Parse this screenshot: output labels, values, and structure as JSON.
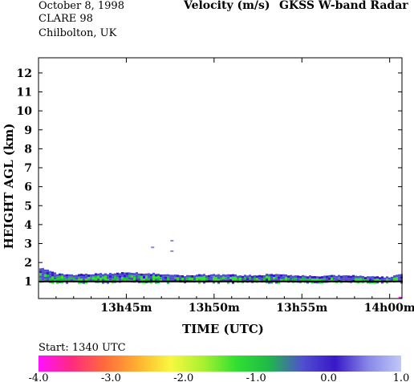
{
  "header": {
    "date": "October   8, 1998",
    "campaign": "CLARE 98",
    "location": "Chilbolton, UK",
    "quantity": "Velocity (m/s)",
    "instrument": "GKSS  W-band Radar"
  },
  "start_label": "Start: 1340 UTC",
  "colors": {
    "background": "#ffffff",
    "palette": [
      "#ff10ff",
      "#ff2a80",
      "#ff6a3c",
      "#ffb030",
      "#f8f840",
      "#a8f030",
      "#30e030",
      "#20b848",
      "#5050d0",
      "#3818c8",
      "#8888e8",
      "#c0c8f8"
    ]
  },
  "chart_data": {
    "type": "heatmap",
    "title": "Velocity (m/s)",
    "xlabel": "TIME (UTC)",
    "ylabel": "HEIGHT AGL (km)",
    "x_ticks": [
      "13h45m",
      "13h50m",
      "13h55m",
      "14h00m"
    ],
    "x_tick_minutes": [
      5,
      10,
      15,
      20
    ],
    "x_range_minutes": [
      0,
      20.7
    ],
    "y_ticks": [
      "1",
      "2",
      "3",
      "4",
      "5",
      "6",
      "7",
      "8",
      "9",
      "10",
      "11",
      "12"
    ],
    "y_tick_values": [
      1,
      2,
      3,
      4,
      5,
      6,
      7,
      8,
      9,
      10,
      11,
      12
    ],
    "ylim": [
      0.1,
      12.8
    ],
    "colorbar": {
      "ticks": [
        "-4.0",
        "-3.0",
        "-2.0",
        "-1.0",
        "0.0",
        "1.0"
      ],
      "range": [
        -4.0,
        1.0
      ]
    },
    "echo_layer": {
      "description_values": "cloud-base echo band",
      "base_km": 1.0,
      "top_km": [
        1.75,
        1.4,
        1.35,
        1.4,
        1.42,
        1.48,
        1.45,
        1.4,
        1.3,
        1.35,
        1.38,
        1.35,
        1.32,
        1.38,
        1.35,
        1.3,
        1.28,
        1.32,
        1.3,
        1.25,
        1.25,
        1.45
      ],
      "top_time_minutes": [
        0,
        1,
        2,
        3,
        4,
        5,
        6,
        7,
        8,
        9,
        10,
        11,
        12,
        13,
        14,
        15,
        16,
        17,
        18,
        19,
        20,
        20.7
      ],
      "typical_velocity_ms": [
        -1.5,
        0.0
      ]
    },
    "isolated_echoes": [
      {
        "time_minutes": 6.5,
        "height_km": 2.8,
        "velocity_ms": 0.3
      },
      {
        "time_minutes": 7.6,
        "height_km": 3.15,
        "velocity_ms": 0.5
      },
      {
        "time_minutes": 7.6,
        "height_km": 2.6,
        "velocity_ms": 0.3
      },
      {
        "time_minutes": 20.6,
        "height_km": 0.15,
        "velocity_ms": -4.0
      }
    ]
  }
}
